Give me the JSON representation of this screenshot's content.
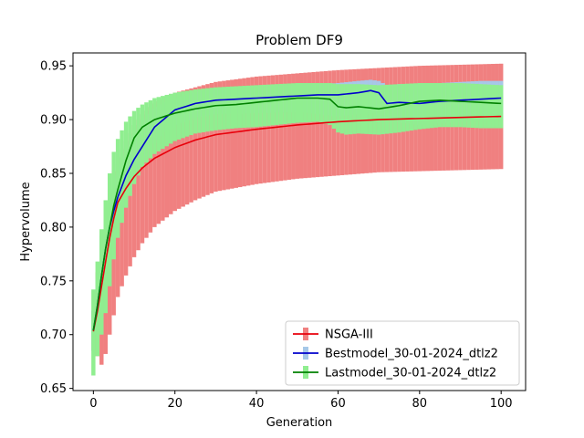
{
  "chart_data": {
    "type": "line",
    "title": "Problem DF9",
    "xlabel": "Generation",
    "ylabel": "Hypervolume",
    "xlim": [
      -5,
      106
    ],
    "ylim": [
      0.648,
      0.962
    ],
    "xticks": [
      0,
      20,
      40,
      60,
      80,
      100
    ],
    "yticks": [
      0.65,
      0.7,
      0.75,
      0.8,
      0.85,
      0.9,
      0.95
    ],
    "legend_position": "lower-right",
    "grid": false,
    "series": [
      {
        "name": "NSGA-III",
        "color": "#e8000b",
        "band_color": "#f08080",
        "x": [
          0,
          1,
          2,
          3,
          4,
          5,
          6,
          8,
          10,
          12,
          15,
          20,
          25,
          30,
          40,
          50,
          60,
          70,
          80,
          90,
          100
        ],
        "mean": [
          0.703,
          0.722,
          0.745,
          0.768,
          0.79,
          0.808,
          0.823,
          0.836,
          0.847,
          0.855,
          0.864,
          0.874,
          0.881,
          0.886,
          0.891,
          0.895,
          0.898,
          0.9,
          0.901,
          0.902,
          0.903
        ],
        "lower": [
          0.685,
          0.68,
          0.672,
          0.682,
          0.7,
          0.718,
          0.735,
          0.755,
          0.772,
          0.785,
          0.8,
          0.815,
          0.825,
          0.833,
          0.84,
          0.845,
          0.848,
          0.851,
          0.852,
          0.853,
          0.854
        ],
        "upper": [
          0.722,
          0.758,
          0.79,
          0.815,
          0.835,
          0.852,
          0.865,
          0.88,
          0.895,
          0.905,
          0.915,
          0.925,
          0.93,
          0.935,
          0.94,
          0.943,
          0.946,
          0.948,
          0.95,
          0.951,
          0.952
        ]
      },
      {
        "name": "Bestmodel_30-01-2024_dtlz2",
        "color": "#0000cc",
        "band_color": "#a6c8e8",
        "x": [
          0,
          1,
          2,
          3,
          4,
          5,
          6,
          8,
          10,
          12,
          15,
          20,
          25,
          30,
          40,
          50,
          55,
          60,
          65,
          68,
          70,
          72,
          75,
          80,
          85,
          90,
          95,
          100
        ],
        "mean": [
          0.704,
          0.727,
          0.755,
          0.78,
          0.8,
          0.815,
          0.828,
          0.848,
          0.863,
          0.875,
          0.893,
          0.909,
          0.915,
          0.918,
          0.92,
          0.922,
          0.923,
          0.923,
          0.925,
          0.927,
          0.925,
          0.915,
          0.916,
          0.915,
          0.917,
          0.918,
          0.919,
          0.92
        ],
        "lower": [
          0.685,
          0.7,
          0.715,
          0.74,
          0.765,
          0.785,
          0.8,
          0.825,
          0.845,
          0.86,
          0.878,
          0.895,
          0.902,
          0.905,
          0.906,
          0.907,
          0.905,
          0.903,
          0.905,
          0.906,
          0.902,
          0.9,
          0.898,
          0.895,
          0.897,
          0.898,
          0.899,
          0.9
        ],
        "upper": [
          0.722,
          0.752,
          0.792,
          0.818,
          0.835,
          0.848,
          0.858,
          0.874,
          0.885,
          0.895,
          0.91,
          0.92,
          0.926,
          0.929,
          0.931,
          0.932,
          0.933,
          0.934,
          0.936,
          0.937,
          0.936,
          0.932,
          0.933,
          0.933,
          0.934,
          0.935,
          0.936,
          0.936
        ]
      },
      {
        "name": "Lastmodel_30-01-2024_dtlz2",
        "color": "#008000",
        "band_color": "#90ee90",
        "x": [
          0,
          1,
          2,
          3,
          4,
          5,
          6,
          8,
          10,
          12,
          15,
          20,
          25,
          30,
          35,
          40,
          45,
          50,
          55,
          58,
          60,
          62,
          65,
          70,
          75,
          80,
          85,
          90,
          95,
          100
        ],
        "mean": [
          0.704,
          0.727,
          0.755,
          0.78,
          0.8,
          0.82,
          0.835,
          0.862,
          0.883,
          0.893,
          0.9,
          0.906,
          0.91,
          0.913,
          0.914,
          0.916,
          0.918,
          0.92,
          0.92,
          0.919,
          0.912,
          0.911,
          0.912,
          0.91,
          0.913,
          0.917,
          0.918,
          0.917,
          0.916,
          0.915
        ],
        "lower": [
          0.662,
          0.68,
          0.7,
          0.72,
          0.745,
          0.77,
          0.79,
          0.818,
          0.84,
          0.856,
          0.868,
          0.88,
          0.887,
          0.89,
          0.892,
          0.893,
          0.895,
          0.897,
          0.898,
          0.895,
          0.888,
          0.886,
          0.887,
          0.886,
          0.888,
          0.891,
          0.893,
          0.893,
          0.892,
          0.892
        ],
        "upper": [
          0.742,
          0.768,
          0.798,
          0.825,
          0.85,
          0.87,
          0.882,
          0.898,
          0.908,
          0.914,
          0.92,
          0.925,
          0.928,
          0.93,
          0.931,
          0.932,
          0.933,
          0.934,
          0.934,
          0.934,
          0.933,
          0.933,
          0.933,
          0.932,
          0.933,
          0.934,
          0.934,
          0.934,
          0.933,
          0.932
        ]
      }
    ]
  }
}
